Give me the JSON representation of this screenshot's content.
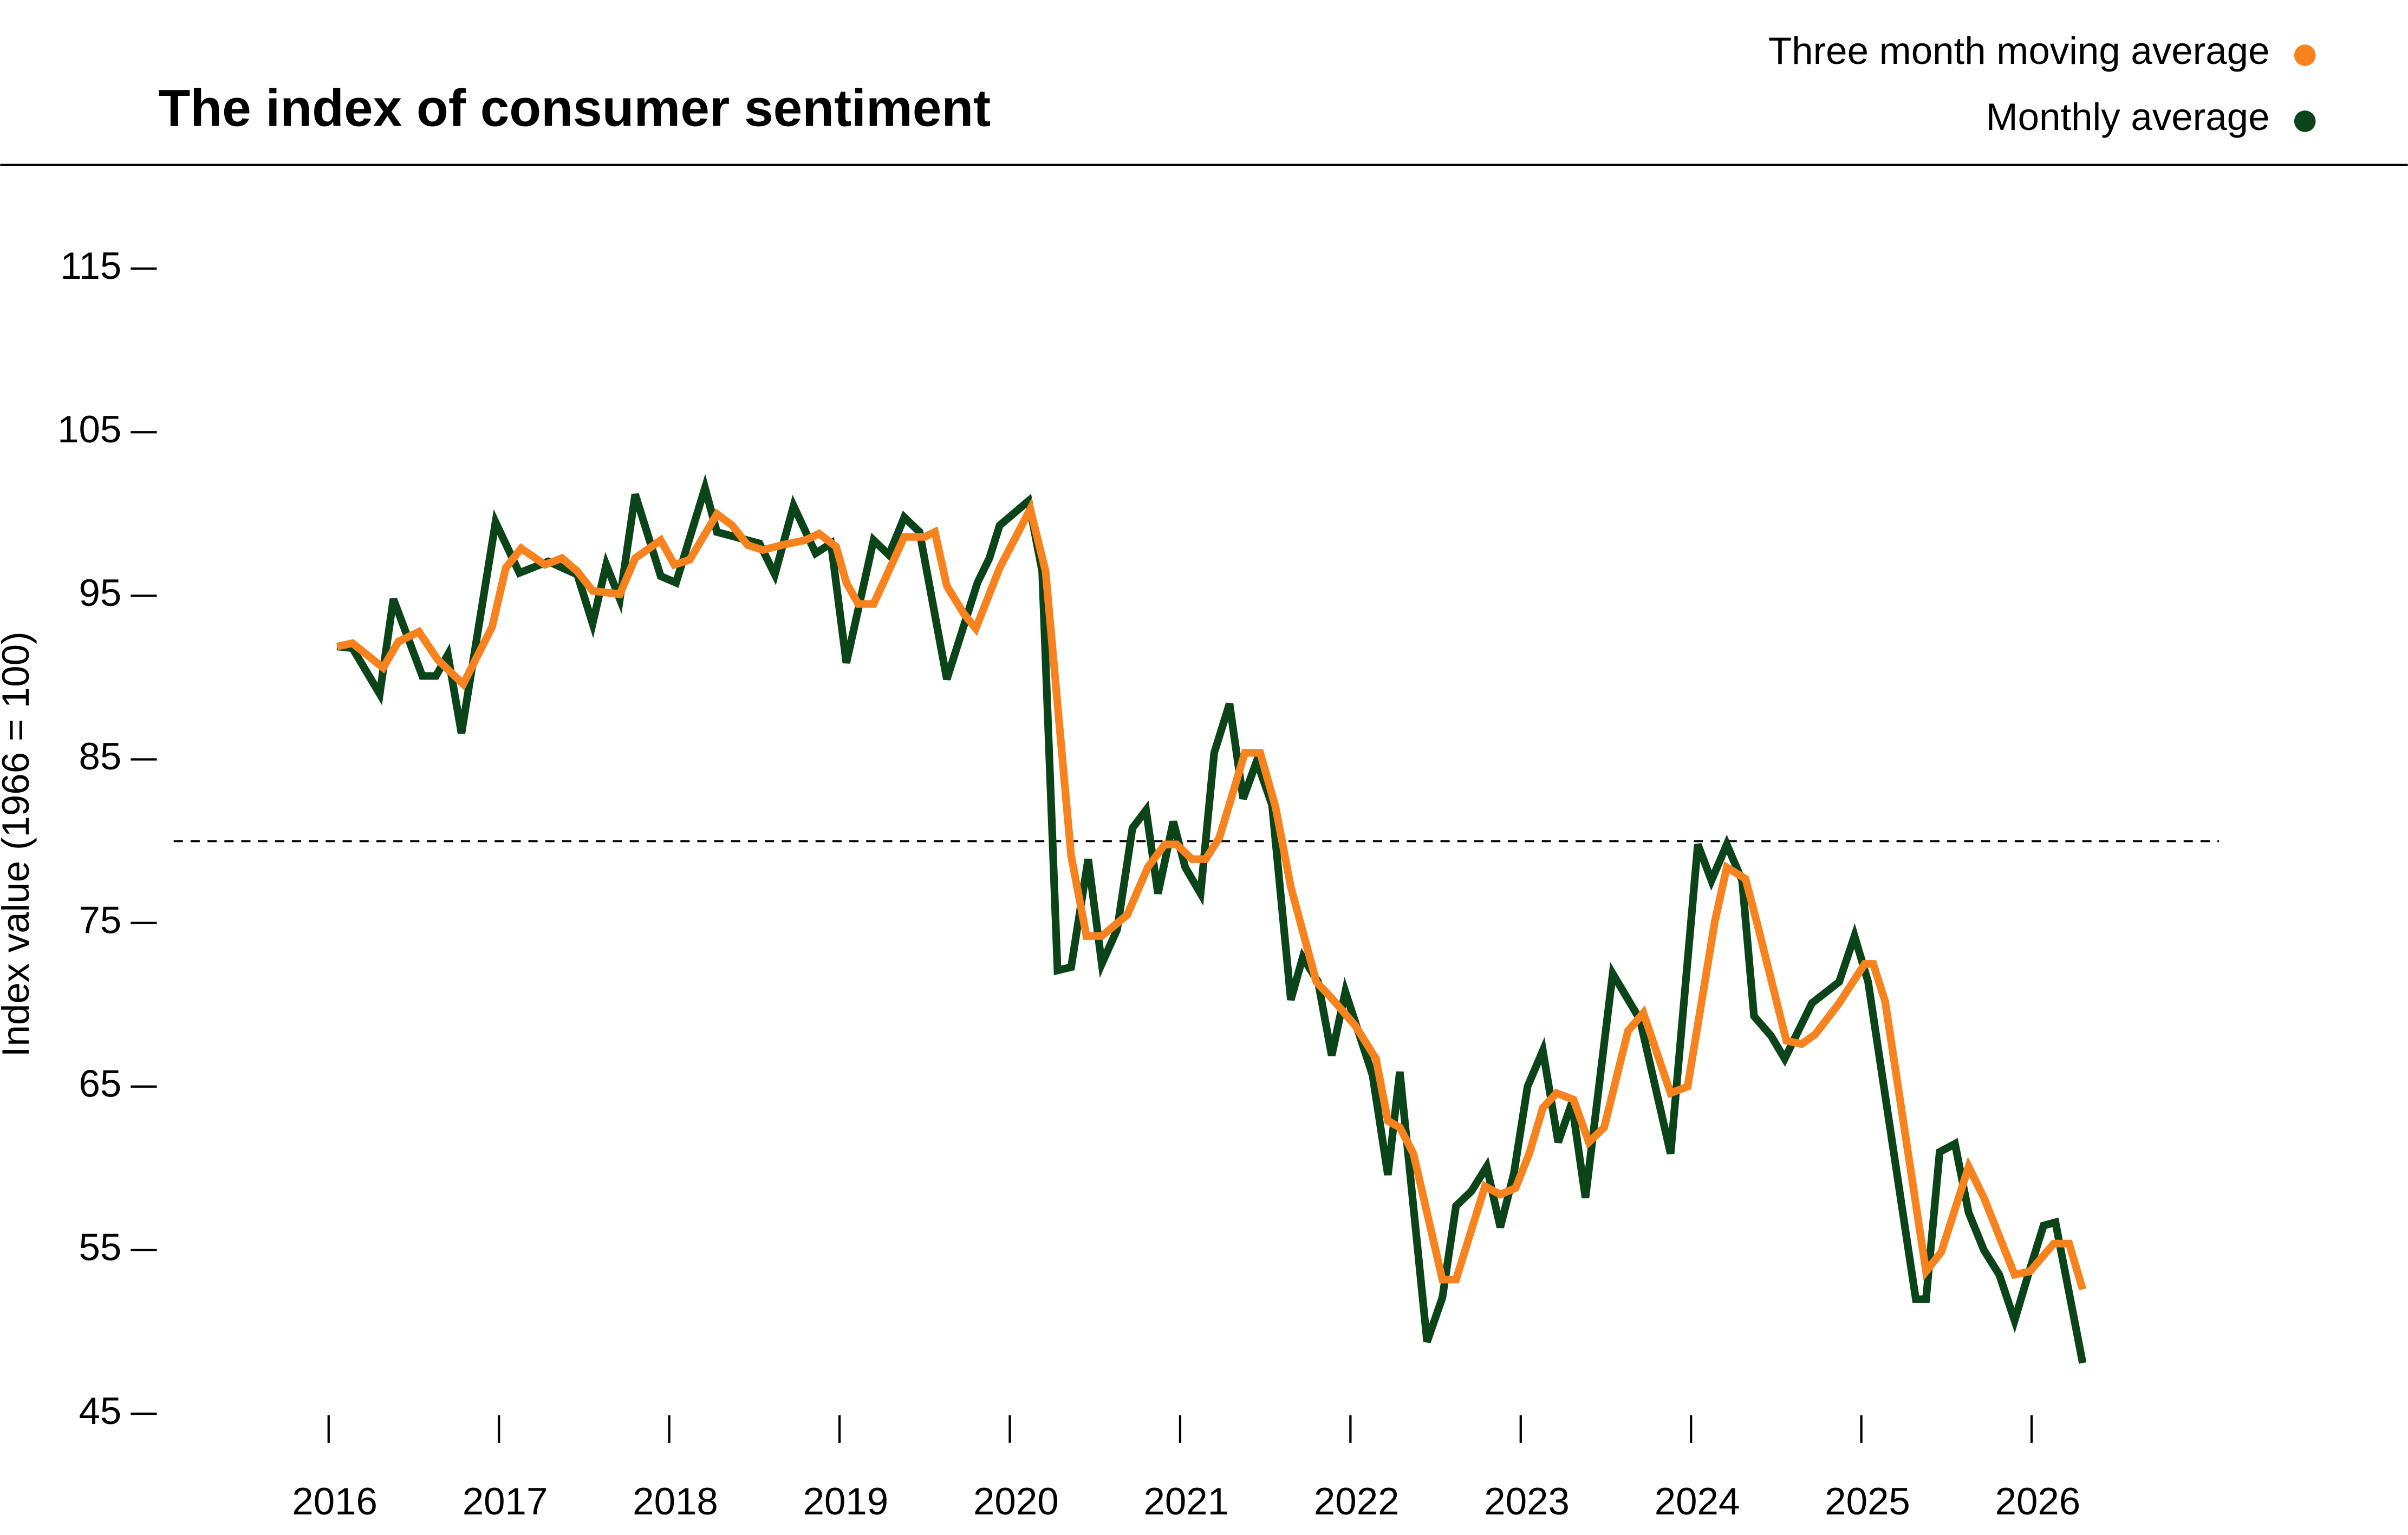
{
  "chart_data": {
    "type": "line",
    "title": "The index of consumer sentiment",
    "y_label": "Index value (1966 = 100)",
    "xlim": [
      2015,
      2027.1
    ],
    "xticks": [
      2016,
      2017,
      2018,
      2019,
      2020,
      2021,
      2022,
      2023,
      2024,
      2025,
      2026
    ],
    "ylim": [
      45,
      115
    ],
    "yticks": [
      45,
      55,
      65,
      75,
      85,
      95,
      105,
      115
    ],
    "reference_line": 80,
    "series": [
      {
        "name": "Three month moving average",
        "color": "#f7821e",
        "x": [
          2016.05,
          2016.14,
          2016.32,
          2016.41,
          2016.53,
          2016.64,
          2016.79,
          2016.96,
          2017.04,
          2017.13,
          2017.27,
          2017.37,
          2017.46,
          2017.55,
          2017.71,
          2017.8,
          2017.95,
          2018.03,
          2018.12,
          2018.28,
          2018.37,
          2018.46,
          2018.55,
          2018.66,
          2018.8,
          2018.88,
          2018.98,
          2019.04,
          2019.11,
          2019.2,
          2019.38,
          2019.5,
          2019.56,
          2019.63,
          2019.73,
          2019.8,
          2019.94,
          2020.12,
          2020.21,
          2020.36,
          2020.45,
          2020.54,
          2020.69,
          2020.81,
          2020.91,
          2020.98,
          2021.07,
          2021.15,
          2021.23,
          2021.38,
          2021.47,
          2021.56,
          2021.65,
          2021.8,
          2021.89,
          2022.03,
          2022.15,
          2022.22,
          2022.29,
          2022.37,
          2022.54,
          2022.62,
          2022.79,
          2022.88,
          2022.97,
          2023.05,
          2023.13,
          2023.21,
          2023.31,
          2023.4,
          2023.49,
          2023.63,
          2023.72,
          2023.88,
          2023.98,
          2024.14,
          2024.21,
          2024.32,
          2024.39,
          2024.56,
          2024.65,
          2024.73,
          2024.87,
          2025.02,
          2025.07,
          2025.14,
          2025.38,
          2025.47,
          2025.63,
          2025.72,
          2025.9,
          2025.99,
          2026.13,
          2026.22,
          2026.3
        ],
        "values": [
          91.9,
          92.1,
          90.6,
          92.2,
          92.8,
          91.1,
          89.6,
          93.1,
          96.7,
          97.9,
          96.9,
          97.3,
          96.5,
          95.3,
          95.1,
          97.3,
          98.4,
          96.9,
          97.2,
          100.0,
          99.3,
          98.1,
          97.8,
          98.1,
          98.4,
          98.8,
          98.0,
          95.8,
          94.5,
          94.5,
          98.6,
          98.6,
          98.9,
          95.6,
          93.9,
          93.0,
          96.7,
          100.3,
          96.5,
          79.1,
          74.2,
          74.2,
          75.5,
          78.4,
          79.8,
          79.8,
          78.9,
          78.9,
          80.2,
          85.4,
          85.4,
          82.1,
          77.2,
          71.4,
          70.4,
          68.7,
          66.7,
          62.9,
          62.5,
          60.9,
          53.2,
          53.2,
          58.9,
          58.4,
          58.8,
          60.9,
          63.7,
          64.6,
          64.2,
          61.6,
          62.5,
          68.4,
          69.5,
          64.6,
          65.0,
          75.1,
          78.4,
          77.7,
          74.9,
          67.8,
          67.6,
          68.2,
          70.1,
          72.5,
          72.5,
          70.2,
          53.7,
          54.9,
          60.1,
          58.2,
          53.5,
          53.7,
          55.4,
          55.4,
          52.6
        ]
      },
      {
        "name": "Monthly average",
        "color": "#0b4419",
        "x": [
          2016.05,
          2016.14,
          2016.3,
          2016.38,
          2016.55,
          2016.63,
          2016.7,
          2016.78,
          2016.98,
          2017.12,
          2017.29,
          2017.46,
          2017.55,
          2017.63,
          2017.71,
          2017.8,
          2017.95,
          2018.04,
          2018.21,
          2018.28,
          2018.53,
          2018.62,
          2018.73,
          2018.86,
          2018.95,
          2019.04,
          2019.2,
          2019.29,
          2019.38,
          2019.47,
          2019.63,
          2019.81,
          2019.88,
          2019.94,
          2020.11,
          2020.19,
          2020.28,
          2020.36,
          2020.46,
          2020.54,
          2020.63,
          2020.72,
          2020.8,
          2020.87,
          2020.96,
          2021.03,
          2021.12,
          2021.2,
          2021.29,
          2021.37,
          2021.45,
          2021.54,
          2021.65,
          2021.72,
          2021.81,
          2021.89,
          2021.97,
          2022.13,
          2022.22,
          2022.29,
          2022.45,
          2022.54,
          2022.62,
          2022.71,
          2022.8,
          2022.88,
          2022.96,
          2023.04,
          2023.13,
          2023.22,
          2023.3,
          2023.38,
          2023.54,
          2023.7,
          2023.88,
          2024.04,
          2024.12,
          2024.21,
          2024.3,
          2024.37,
          2024.47,
          2024.55,
          2024.71,
          2024.87,
          2024.96,
          2025.04,
          2025.32,
          2025.38,
          2025.46,
          2025.55,
          2025.63,
          2025.72,
          2025.81,
          2025.9,
          2025.98,
          2026.07,
          2026.14,
          2026.3
        ],
        "values": [
          91.9,
          91.8,
          89.0,
          94.8,
          90.1,
          90.1,
          91.4,
          86.6,
          99.5,
          96.4,
          97.1,
          96.3,
          93.3,
          96.9,
          94.8,
          101.2,
          96.2,
          95.8,
          101.6,
          98.9,
          98.2,
          96.3,
          100.5,
          97.6,
          98.2,
          90.9,
          98.4,
          97.5,
          99.8,
          98.9,
          89.9,
          95.8,
          97.3,
          99.3,
          100.8,
          96.5,
          72.1,
          72.3,
          78.9,
          72.5,
          74.6,
          80.8,
          81.9,
          76.8,
          81.2,
          78.4,
          76.8,
          85.4,
          88.4,
          82.6,
          84.9,
          82.2,
          70.3,
          72.9,
          71.4,
          66.9,
          70.8,
          65.7,
          59.6,
          65.9,
          49.4,
          52.1,
          57.7,
          58.6,
          60.1,
          56.4,
          59.7,
          65.0,
          67.2,
          61.6,
          64.0,
          58.2,
          71.9,
          69.1,
          60.9,
          79.8,
          77.6,
          79.8,
          77.6,
          69.3,
          68.1,
          66.7,
          70.1,
          71.4,
          74.2,
          71.4,
          52.0,
          52.0,
          61.0,
          61.5,
          57.3,
          55.0,
          53.5,
          50.7,
          53.5,
          56.5,
          56.7,
          48.1
        ]
      }
    ]
  }
}
